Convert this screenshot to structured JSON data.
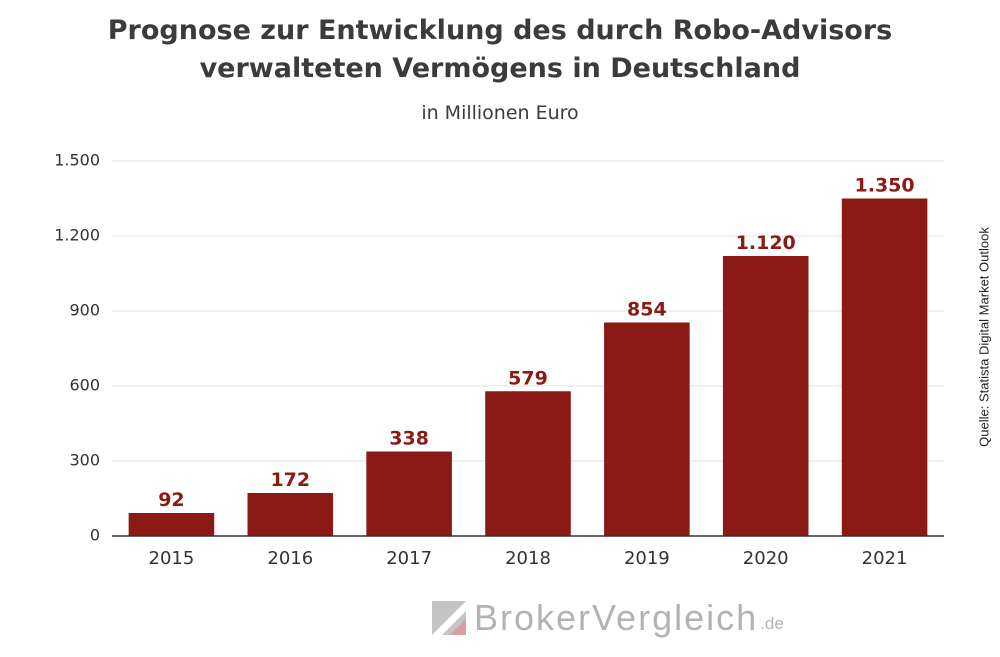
{
  "title_line1": "Prognose zur Entwicklung des durch Robo-Advisors",
  "title_line2": "verwalteten Vermögens in Deutschland",
  "subtitle": "in Millionen Euro",
  "source": "Quelle: Statista Digital Market Outlook",
  "brand": {
    "name": "BrokerVergleich",
    "tld": ".de"
  },
  "colors": {
    "bar": "#8b1a16",
    "label": "#8b1a16",
    "grid": "#e0e0e0",
    "axis": "#333333"
  },
  "chart_data": {
    "type": "bar",
    "title": "Prognose zur Entwicklung des durch Robo-Advisors verwalteten Vermögens in Deutschland",
    "subtitle": "in Millionen Euro",
    "xlabel": "",
    "ylabel": "",
    "categories": [
      "2015",
      "2016",
      "2017",
      "2018",
      "2019",
      "2020",
      "2021"
    ],
    "values": [
      92,
      172,
      338,
      579,
      854,
      1120,
      1350
    ],
    "value_labels": [
      "92",
      "172",
      "338",
      "579",
      "854",
      "1.120",
      "1.350"
    ],
    "ylim": [
      0,
      1500
    ],
    "yticks": [
      0,
      300,
      600,
      900,
      1200,
      1500
    ],
    "ytick_labels": [
      "0",
      "300",
      "600",
      "900",
      "1.200",
      "1.500"
    ],
    "grid": true,
    "legend": "none"
  }
}
